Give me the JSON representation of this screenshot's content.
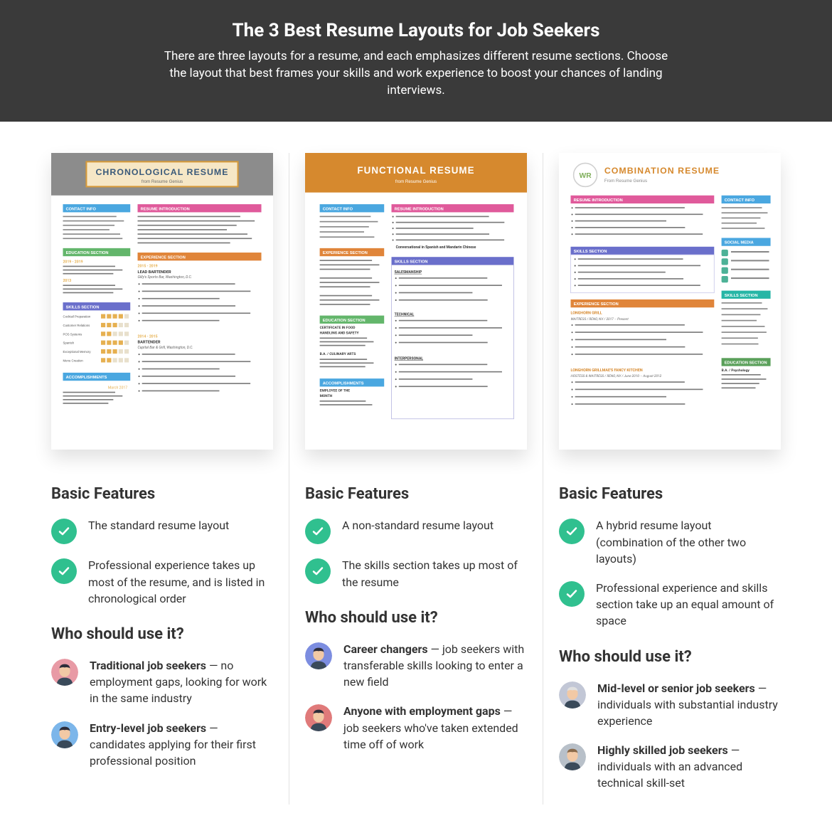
{
  "header": {
    "title": "The 3 Best Resume Layouts for Job Seekers",
    "subtitle": "There are three layouts for a resume, and each emphasizes different resume sections. Choose the layout that best frames your skills and work experience to boost your chances of landing interviews."
  },
  "columns": [
    {
      "thumb": {
        "title": "CHRONOLOGICAL RESUME",
        "subtitle": "from Resume Genius",
        "header_bg": "#8c8c8c",
        "banner_bg": "#f6e7c6",
        "banner_border": "#d69a3a",
        "sidebar_labels": [
          "CONTACT INFO",
          "EDUCATION SECTION",
          "SKILLS SECTION",
          "ACCOMPLISHMENTS"
        ],
        "sidebar_colors": [
          "#4aa7e0",
          "#63b66b",
          "#6a6fcb",
          "#4aa7e0"
        ],
        "main_labels": [
          "RESUME INTRODUCTION",
          "EXPERIENCE SECTION"
        ],
        "main_colors": [
          "#e05a9b",
          "#e0853a"
        ]
      },
      "features_title": "Basic Features",
      "features": [
        "The standard resume layout",
        "Professional experience takes up most of the resume, and is listed in chronological order"
      ],
      "who_title": "Who should use it?",
      "who": [
        {
          "bold": "Traditional job seekers",
          "rest": " — no employment gaps, looking for work in the same industry",
          "avatar_bg": "#e89aa5",
          "hair": "#2d2d3a"
        },
        {
          "bold": "Entry-level job seekers",
          "rest": " — candidates applying for their first professional position",
          "avatar_bg": "#7cb6ea",
          "hair": "#2d2d3a"
        }
      ]
    },
    {
      "thumb": {
        "title": "FUNCTIONAL RESUME",
        "subtitle": "from Resume Genius",
        "header_bg": "#d6892e",
        "banner_bg": "#d6892e",
        "banner_border": "#d6892e",
        "title_color": "#ffffff",
        "sidebar_labels": [
          "CONTACT INFO",
          "EXPERIENCE SECTION",
          "EDUCATION SECTION",
          "ACCOMPLISHMENTS"
        ],
        "sidebar_colors": [
          "#4aa7e0",
          "#e0853a",
          "#63b66b",
          "#4aa7e0"
        ],
        "main_labels": [
          "RESUME INTRODUCTION",
          "SKILLS SECTION"
        ],
        "main_colors": [
          "#e05a9b",
          "#6a6fcb"
        ]
      },
      "features_title": "Basic Features",
      "features": [
        "A non-standard resume layout",
        "The skills section takes up most of the resume"
      ],
      "who_title": "Who should use it?",
      "who": [
        {
          "bold": "Career changers",
          "rest": " — job seekers with transferable skills looking to enter a new field",
          "avatar_bg": "#7c8de0",
          "hair": "#2d2d3a"
        },
        {
          "bold": "Anyone with employment gaps",
          "rest": " — job seekers who've taken extended time off of work",
          "avatar_bg": "#e07a7a",
          "hair": "#2d2d3a"
        }
      ]
    },
    {
      "thumb": {
        "title": "COMBINATION RESUME",
        "subtitle": "From Resume Genius",
        "header_bg": "#ffffff",
        "banner_bg": "#ffffff",
        "banner_border": "#e0e0e0",
        "title_color": "#d6892e",
        "monogram": "WR",
        "rightbar_labels": [
          "CONTACT INFO",
          "SOCIAL MEDIA",
          "SKILLS SECTION",
          "EDUCATION SECTION"
        ],
        "rightbar_colors": [
          "#4aa7e0",
          "#4aa7e0",
          "#27b6a6",
          "#5aa05a"
        ],
        "main_labels": [
          "RESUME INTRODUCTION",
          "SKILLS SECTION",
          "EXPERIENCE SECTION"
        ],
        "main_colors": [
          "#e05a9b",
          "#6a6fcb",
          "#e0853a"
        ]
      },
      "features_title": "Basic Features",
      "features": [
        "A hybrid resume layout (combination of the other two layouts)",
        "Professional experience and skills section take up an equal amount of space"
      ],
      "who_title": "Who should use it?",
      "who": [
        {
          "bold": "Mid-level or senior job seekers",
          "rest": " — individuals with substantial industry experience",
          "avatar_bg": "#c2c7d6",
          "hair": "#e0e0e0"
        },
        {
          "bold": "Highly skilled job seekers",
          "rest": " — individuals with an advanced technical skill-set",
          "avatar_bg": "#b8c0c9",
          "hair": "#8a6a4a"
        }
      ]
    }
  ],
  "colors": {
    "check_bg": "#30c08f",
    "text": "#333333"
  }
}
